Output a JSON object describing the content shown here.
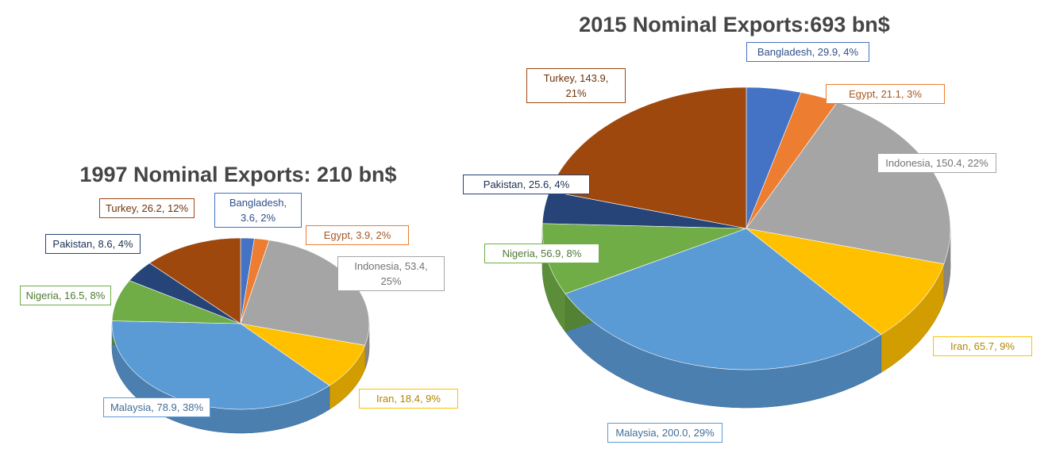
{
  "chart_data": [
    {
      "type": "pie",
      "title": "1997 Nominal Exports: 210 bn$",
      "categories": [
        "Bangladesh",
        "Egypt",
        "Indonesia",
        "Iran",
        "Malaysia",
        "Nigeria",
        "Pakistan",
        "Turkey"
      ],
      "values": [
        3.6,
        3.9,
        53.4,
        18.4,
        78.9,
        16.5,
        8.6,
        26.2
      ],
      "value_labels": [
        ", 3.6, 2%",
        ", 3.9, 2%",
        ", 53.4, 25%",
        ", 18.4, 9%",
        ", 78.9, 38%",
        ", 16.5, 8%",
        ", 8.6, 4%",
        ", 26.2, 12%"
      ],
      "colors": [
        "#4472c4",
        "#ed7d31",
        "#a5a5a5",
        "#ffc000",
        "#5b9bd5",
        "#70ad47",
        "#264478",
        "#9e480e"
      ]
    },
    {
      "type": "pie",
      "title": "2015 Nominal Exports:693 bn$",
      "categories": [
        "Bangladesh",
        "Egypt",
        "Indonesia",
        "Iran",
        "Malaysia",
        "Nigeria",
        "Pakistan",
        "Turkey"
      ],
      "values": [
        29.9,
        21.1,
        150.4,
        65.7,
        200.0,
        56.9,
        25.6,
        143.9
      ],
      "value_labels": [
        ", 29.9, 4%",
        ", 21.1, 3%",
        ", 150.4, 22%",
        ", 65.7, 9%",
        ", 200.0, 29%",
        ", 56.9, 8%",
        ", 25.6, 4%",
        ", 143.9, 21%"
      ],
      "colors": [
        "#4472c4",
        "#ed7d31",
        "#a5a5a5",
        "#ffc000",
        "#5b9bd5",
        "#70ad47",
        "#264478",
        "#9e480e"
      ]
    }
  ]
}
